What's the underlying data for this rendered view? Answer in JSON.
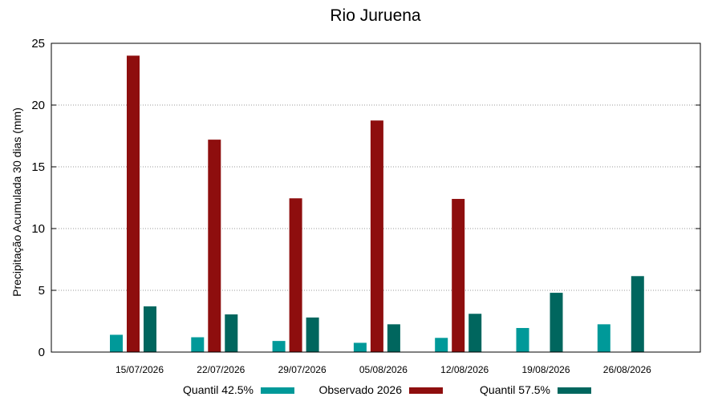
{
  "chart_data": {
    "type": "bar",
    "title": "Rio Juruena",
    "xlabel": "",
    "ylabel": "Precipitação Acumulada 30 dias (mm)",
    "ylim": [
      0,
      25
    ],
    "yticks": [
      0,
      5,
      10,
      15,
      20,
      25
    ],
    "grid": true,
    "legend_position": "bottom",
    "categories": [
      "15/07/2026",
      "22/07/2026",
      "29/07/2026",
      "05/08/2026",
      "12/08/2026",
      "19/08/2026",
      "26/08/2026"
    ],
    "series": [
      {
        "name": "Quantil 42.5%",
        "color": "#009999",
        "values": [
          1.4,
          1.2,
          0.9,
          0.75,
          1.15,
          1.95,
          2.25
        ]
      },
      {
        "name": "Observado 2026",
        "color": "#8e0e0e",
        "values": [
          24.0,
          17.2,
          12.45,
          18.75,
          12.4,
          null,
          null
        ]
      },
      {
        "name": "Quantil 57.5%",
        "color": "#00665e",
        "values": [
          3.7,
          3.05,
          2.8,
          2.25,
          3.1,
          4.8,
          6.15
        ]
      }
    ]
  }
}
